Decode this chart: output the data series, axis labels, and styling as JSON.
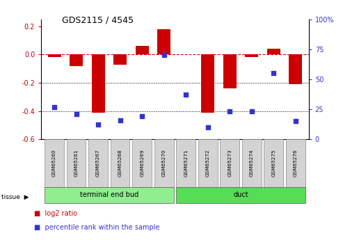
{
  "title": "GDS2115 / 4545",
  "samples": [
    "GSM65260",
    "GSM65261",
    "GSM65267",
    "GSM65268",
    "GSM65269",
    "GSM65270",
    "GSM65271",
    "GSM65272",
    "GSM65273",
    "GSM65274",
    "GSM65275",
    "GSM65276"
  ],
  "log2_ratio": [
    -0.02,
    -0.08,
    -0.41,
    -0.07,
    0.06,
    0.18,
    0.0,
    -0.41,
    -0.24,
    -0.02,
    0.04,
    -0.21
  ],
  "percentile_rank": [
    27,
    21,
    12,
    16,
    19,
    70,
    37,
    10,
    23,
    23,
    55,
    15
  ],
  "bar_color": "#cc0000",
  "dot_color_blue": "#3333cc",
  "ylim_left": [
    -0.6,
    0.25
  ],
  "ylim_right": [
    0,
    100
  ],
  "hline_color": "#cc0000",
  "tissue_groups": [
    {
      "label": "terminal end bud",
      "start": 0,
      "end": 6,
      "color": "#90ee90"
    },
    {
      "label": "duct",
      "start": 6,
      "end": 12,
      "color": "#55dd55"
    }
  ],
  "legend_red_label": "log2 ratio",
  "legend_blue_label": "percentile rank within the sample",
  "yticks_left": [
    -0.6,
    -0.4,
    -0.2,
    0.0,
    0.2
  ],
  "yticks_right": [
    0,
    25,
    50,
    75,
    100
  ],
  "bar_width": 0.6
}
